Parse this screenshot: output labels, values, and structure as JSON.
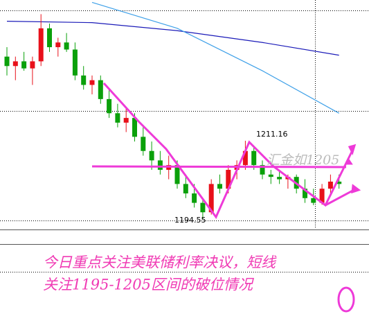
{
  "chart_data": {
    "type": "candlestick",
    "ylim": [
      1192.5,
      1241
    ],
    "up_color": "#e8101a",
    "down_color": "#0aa00a",
    "candles": [
      [
        1229,
        1231,
        1225,
        1227
      ],
      [
        1227,
        1229,
        1224,
        1228
      ],
      [
        1228,
        1230,
        1226,
        1226.5
      ],
      [
        1226.5,
        1229,
        1223,
        1228
      ],
      [
        1228,
        1238,
        1227,
        1235
      ],
      [
        1235,
        1236,
        1230,
        1231
      ],
      [
        1231,
        1233,
        1229,
        1232
      ],
      [
        1232,
        1234,
        1230,
        1230.5
      ],
      [
        1230.5,
        1232,
        1224,
        1225
      ],
      [
        1225,
        1227,
        1222,
        1223
      ],
      [
        1223,
        1225,
        1221,
        1224
      ],
      [
        1224,
        1225,
        1219,
        1220
      ],
      [
        1220,
        1222,
        1216,
        1217
      ],
      [
        1217,
        1219,
        1214,
        1215
      ],
      [
        1215,
        1218,
        1213,
        1216
      ],
      [
        1216,
        1217,
        1211,
        1212
      ],
      [
        1212,
        1214,
        1208,
        1209
      ],
      [
        1209,
        1211,
        1205,
        1207
      ],
      [
        1207,
        1209,
        1204,
        1205
      ],
      [
        1205,
        1208,
        1203,
        1206
      ],
      [
        1206,
        1207,
        1201,
        1202
      ],
      [
        1202,
        1204,
        1199,
        1200
      ],
      [
        1200,
        1202,
        1197,
        1198
      ],
      [
        1198,
        1199,
        1194.55,
        1196
      ],
      [
        1196,
        1203,
        1195.5,
        1202
      ],
      [
        1202,
        1204,
        1200,
        1201
      ],
      [
        1201,
        1206,
        1200,
        1205
      ],
      [
        1205,
        1207,
        1203,
        1206
      ],
      [
        1206,
        1211.16,
        1205,
        1209
      ],
      [
        1209,
        1210,
        1205,
        1206
      ],
      [
        1206,
        1207,
        1203,
        1204
      ],
      [
        1204,
        1205,
        1202,
        1203.5
      ],
      [
        1203.5,
        1205,
        1202,
        1203
      ],
      [
        1203,
        1204,
        1201,
        1203.5
      ],
      [
        1203.5,
        1204,
        1200,
        1201
      ],
      [
        1201,
        1203,
        1198,
        1199
      ],
      [
        1199,
        1201,
        1197.5,
        1198
      ],
      [
        1198,
        1202,
        1197.6,
        1201
      ],
      [
        1201,
        1204,
        1200,
        1202.5
      ],
      [
        1202.5,
        1204,
        1201,
        1202
      ]
    ],
    "lines": [
      {
        "color": "#1a1ab8",
        "x": [
          0,
          10,
          20,
          30,
          39
        ],
        "values": [
          1236.5,
          1236.2,
          1234.5,
          1232,
          1229.3
        ]
      },
      {
        "color": "#3ea0e8",
        "x": [
          10,
          20,
          30,
          39
        ],
        "values": [
          1240.5,
          1235,
          1226,
          1217
        ]
      }
    ],
    "annotations": [
      "1211.16",
      "1194.55",
      "汇金如1205",
      "今日重点关注美联储利率决议，短线",
      "关注1195-1205区间的破位情况"
    ]
  }
}
